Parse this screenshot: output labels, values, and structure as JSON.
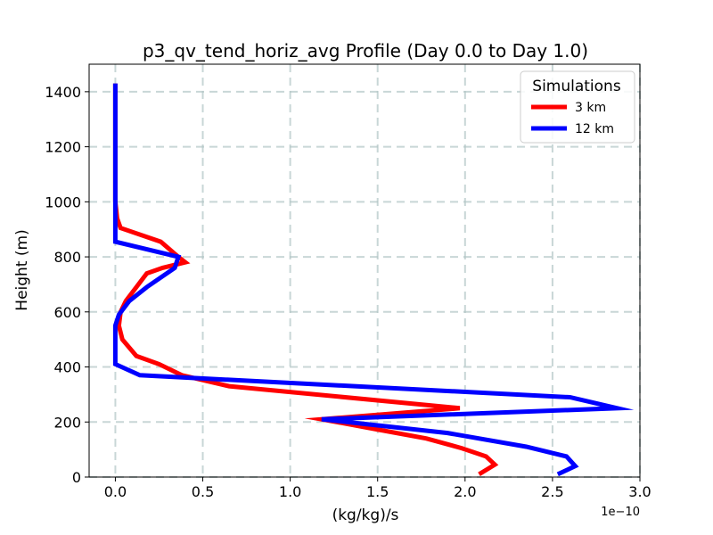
{
  "chart_data": {
    "type": "line",
    "title": "p3_qv_tend_horiz_avg Profile (Day 0.0 to Day 1.0)",
    "xlabel": "(kg/kg)/s",
    "ylabel": "Height (m)",
    "x_offset_label": "1e−10",
    "xlim": [
      -0.15,
      3.0
    ],
    "ylim": [
      0,
      1500
    ],
    "xticks": [
      0.0,
      0.5,
      1.0,
      1.5,
      2.0,
      2.5,
      3.0
    ],
    "xtick_labels": [
      "0.0",
      "0.5",
      "1.0",
      "1.5",
      "2.0",
      "2.5",
      "3.0"
    ],
    "yticks": [
      0,
      200,
      400,
      600,
      800,
      1000,
      1200,
      1400
    ],
    "ytick_labels": [
      "0",
      "200",
      "400",
      "600",
      "800",
      "1000",
      "1200",
      "1400"
    ],
    "grid": true,
    "legend": {
      "title": "Simulations",
      "position": "top-right"
    },
    "series": [
      {
        "name": "3 km",
        "color": "#ff0000",
        "x": [
          2.08,
          2.17,
          2.12,
          1.98,
          1.78,
          1.48,
          1.18,
          1.97,
          0.65,
          0.38,
          0.25,
          0.12,
          0.04,
          0.02,
          0.03,
          0.06,
          0.12,
          0.18,
          0.27,
          0.4,
          0.36,
          0.26,
          0.03,
          0.01,
          0.0,
          0.0,
          0.0,
          0.0,
          0.0
        ],
        "y": [
          10,
          45,
          75,
          105,
          140,
          175,
          210,
          250,
          330,
          370,
          410,
          440,
          500,
          550,
          600,
          640,
          690,
          740,
          760,
          780,
          800,
          855,
          905,
          940,
          1000,
          1100,
          1200,
          1300,
          1430
        ]
      },
      {
        "name": "12 km",
        "color": "#0000ff",
        "x": [
          2.53,
          2.63,
          2.58,
          2.35,
          1.9,
          1.18,
          2.87,
          2.6,
          0.14,
          0.0,
          0.0,
          0.0,
          0.02,
          0.08,
          0.18,
          0.34,
          0.36,
          0.0,
          0.0,
          0.0,
          0.0,
          0.0,
          0.0
        ],
        "y": [
          10,
          40,
          75,
          110,
          160,
          210,
          250,
          290,
          370,
          410,
          500,
          550,
          590,
          640,
          690,
          760,
          800,
          855,
          900,
          1000,
          1100,
          1200,
          1430
        ]
      }
    ]
  }
}
